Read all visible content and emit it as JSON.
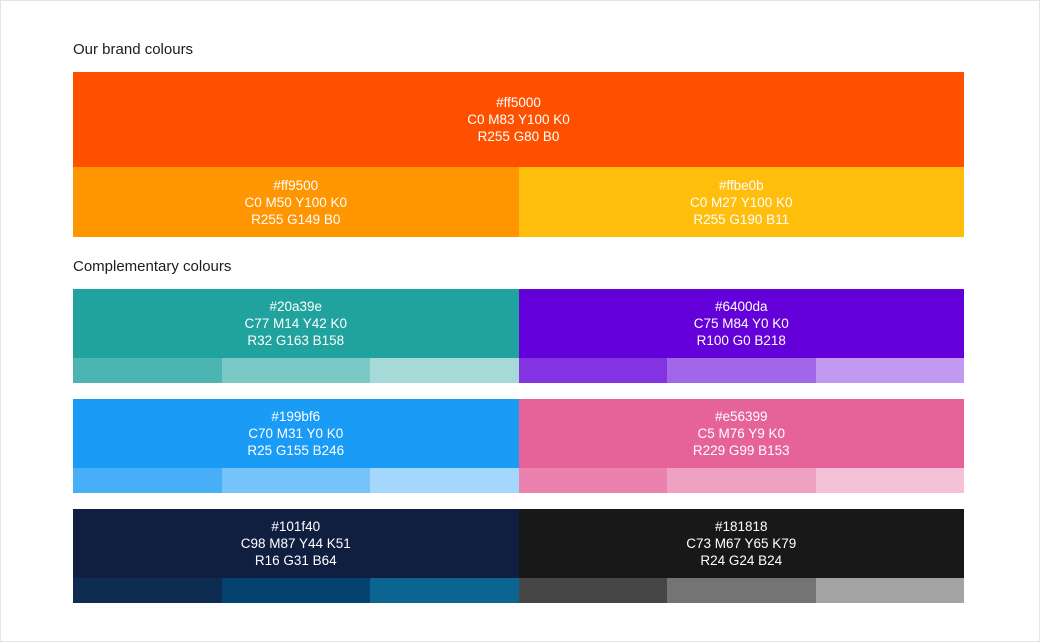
{
  "page": {
    "background": "#ffffff",
    "border_color": "#e5e5e5",
    "text_color": "#ffffff"
  },
  "brand": {
    "heading": "Our brand colours",
    "primary": {
      "hex": "#ff5000",
      "cmyk": "C0 M83 Y100 K0",
      "rgb": "R255 G80 B0"
    },
    "secondary": [
      {
        "hex": "#ff9500",
        "cmyk": "C0 M50 Y100 K0",
        "rgb": "R255 G149 B0"
      },
      {
        "hex": "#ffbe0b",
        "cmyk": "C0 M27 Y100 K0",
        "rgb": "R255 G190 B11"
      }
    ]
  },
  "complementary": {
    "heading": "Complementary colours",
    "colours": [
      {
        "hex": "#20a39e",
        "cmyk": "C77 M14 Y42 K0",
        "rgb": "R32 G163 B158",
        "tints": [
          "#4db5b1",
          "#79c8c5",
          "#a6dad8"
        ]
      },
      {
        "hex": "#6400da",
        "cmyk": "C75 M84 Y0 K0",
        "rgb": "R100 G0 B218",
        "tints": [
          "#8333e1",
          "#a266e9",
          "#c199f0"
        ]
      },
      {
        "hex": "#199bf6",
        "cmyk": "C70 M31 Y0 K0",
        "rgb": "R25 G155 B246",
        "tints": [
          "#47aff8",
          "#75c3fa",
          "#a3d7fb"
        ]
      },
      {
        "hex": "#e56399",
        "cmyk": "C5 M76 Y9 K0",
        "rgb": "R229 G99 B153",
        "tints": [
          "#ea82ad",
          "#efa1c2",
          "#f5c1d6"
        ]
      },
      {
        "hex": "#101f40",
        "cmyk": "C98 M87 Y44 K51",
        "rgb": "R16 G31 B64",
        "tints": [
          "#0e2b52",
          "#044270",
          "#0c6590"
        ]
      },
      {
        "hex": "#181818",
        "cmyk": "C73 M67 Y65 K79",
        "rgb": "R24 G24 B24",
        "tints": [
          "#464646",
          "#747474",
          "#a3a3a3"
        ]
      }
    ]
  }
}
